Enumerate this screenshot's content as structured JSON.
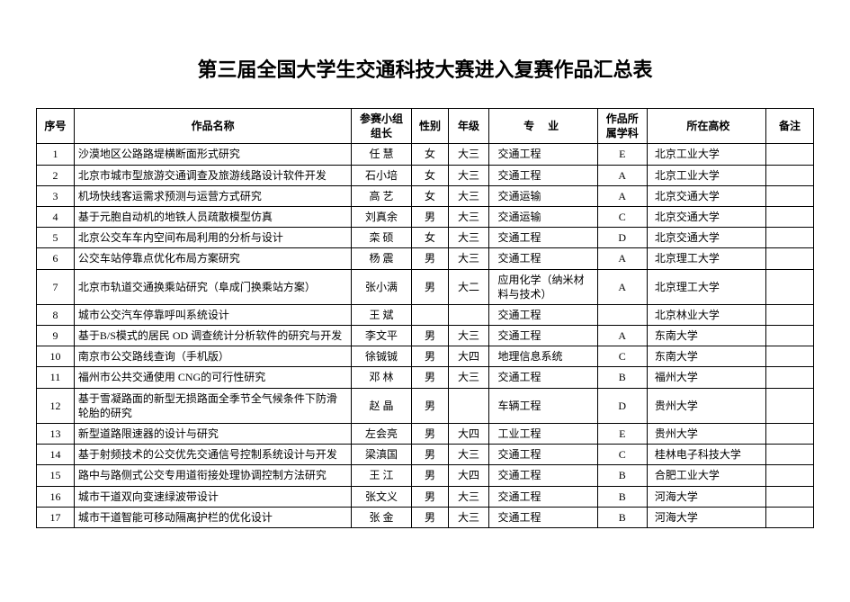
{
  "title": "第三届全国大学生交通科技大赛进入复赛作品汇总表",
  "columns": {
    "id": "序号",
    "name": "作品名称",
    "leader": "参赛小组组长",
    "sex": "性别",
    "grade": "年级",
    "major": "专 业",
    "subject": "作品所属学科",
    "university": "所在高校",
    "note": "备注"
  },
  "rows": [
    {
      "id": "1",
      "name": "沙漠地区公路路堤横断面形式研究",
      "leader": "任  慧",
      "sex": "女",
      "grade": "大三",
      "major": "交通工程",
      "subject": "E",
      "university": "北京工业大学",
      "note": ""
    },
    {
      "id": "2",
      "name": "北京市城市型旅游交通调查及旅游线路设计软件开发",
      "leader": "石小培",
      "sex": "女",
      "grade": "大三",
      "major": "交通工程",
      "subject": "A",
      "university": "北京工业大学",
      "note": ""
    },
    {
      "id": "3",
      "name": "机场快线客运需求预测与运营方式研究",
      "leader": "高  艺",
      "sex": "女",
      "grade": "大三",
      "major": "交通运输",
      "subject": "A",
      "university": "北京交通大学",
      "note": ""
    },
    {
      "id": "4",
      "name": "基于元胞自动机的地铁人员疏散模型仿真",
      "leader": "刘真余",
      "sex": "男",
      "grade": "大三",
      "major": "交通运输",
      "subject": "C",
      "university": "北京交通大学",
      "note": ""
    },
    {
      "id": "5",
      "name": "北京公交车车内空间布局利用的分析与设计",
      "leader": "栾  硕",
      "sex": "女",
      "grade": "大三",
      "major": "交通工程",
      "subject": "D",
      "university": "北京交通大学",
      "note": ""
    },
    {
      "id": "6",
      "name": "公交车站停靠点优化布局方案研究",
      "leader": "杨  震",
      "sex": "男",
      "grade": "大三",
      "major": "交通工程",
      "subject": "A",
      "university": "北京理工大学",
      "note": ""
    },
    {
      "id": "7",
      "name": "北京市轨道交通换乘站研究（阜成门换乘站方案）",
      "leader": "张小满",
      "sex": "男",
      "grade": "大二",
      "major": "应用化学（纳米材料与技术）",
      "subject": "A",
      "university": "北京理工大学",
      "note": ""
    },
    {
      "id": "8",
      "name": "城市公交汽车停靠呼叫系统设计",
      "leader": "王  斌",
      "sex": "",
      "grade": "",
      "major": "交通工程",
      "subject": "",
      "university": "北京林业大学",
      "note": ""
    },
    {
      "id": "9",
      "name": "基于B/S模式的居民 OD 调查统计分析软件的研究与开发",
      "leader": "李文平",
      "sex": "男",
      "grade": "大三",
      "major": "交通工程",
      "subject": "A",
      "university": "东南大学",
      "note": ""
    },
    {
      "id": "10",
      "name": "南京市公交路线查询（手机版）",
      "leader": "徐铖铖",
      "sex": "男",
      "grade": "大四",
      "major": "地理信息系统",
      "subject": "C",
      "university": "东南大学",
      "note": ""
    },
    {
      "id": "11",
      "name": "福州市公共交通使用 CNG的可行性研究",
      "leader": "邓  林",
      "sex": "男",
      "grade": "大三",
      "major": "交通工程",
      "subject": "B",
      "university": "福州大学",
      "note": ""
    },
    {
      "id": "12",
      "name": "基于雪凝路面的新型无损路面全季节全气候条件下防滑轮胎的研究",
      "leader": "赵  晶",
      "sex": "男",
      "grade": "",
      "major": "车辆工程",
      "subject": "D",
      "university": "贵州大学",
      "note": ""
    },
    {
      "id": "13",
      "name": "新型道路限速器的设计与研究",
      "leader": "左会亮",
      "sex": "男",
      "grade": "大四",
      "major": "工业工程",
      "subject": "E",
      "university": "贵州大学",
      "note": ""
    },
    {
      "id": "14",
      "name": "基于射频技术的公交优先交通信号控制系统设计与开发",
      "leader": "梁滇国",
      "sex": "男",
      "grade": "大三",
      "major": "交通工程",
      "subject": "C",
      "university": "桂林电子科技大学",
      "note": ""
    },
    {
      "id": "15",
      "name": "路中与路侧式公交专用道衔接处理协调控制方法研究",
      "leader": "王  江",
      "sex": "男",
      "grade": "大四",
      "major": "交通工程",
      "subject": "B",
      "university": "合肥工业大学",
      "note": ""
    },
    {
      "id": "16",
      "name": "城市干道双向变速绿波带设计",
      "leader": "张文义",
      "sex": "男",
      "grade": "大三",
      "major": "交通工程",
      "subject": "B",
      "university": "河海大学",
      "note": ""
    },
    {
      "id": "17",
      "name": "城市干道智能可移动隔离护栏的优化设计",
      "leader": "张  金",
      "sex": "男",
      "grade": "大三",
      "major": "交通工程",
      "subject": "B",
      "university": "河海大学",
      "note": ""
    }
  ]
}
